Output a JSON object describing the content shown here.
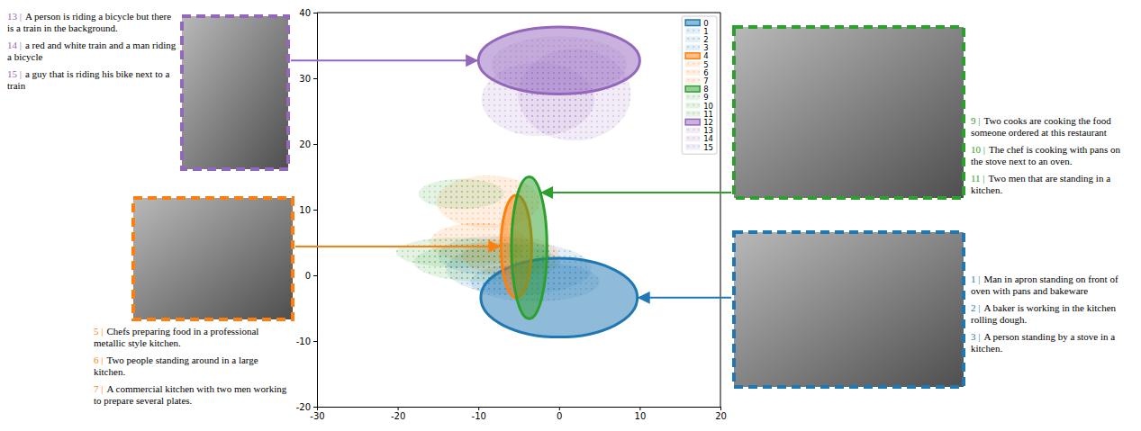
{
  "chart_data": {
    "type": "ellipse",
    "xlim": [
      -30,
      20
    ],
    "ylim": [
      -20,
      40
    ],
    "xticks": [
      -30,
      -20,
      -10,
      0,
      10,
      20
    ],
    "yticks": [
      -20,
      -10,
      0,
      10,
      20,
      30,
      40
    ],
    "legend": "upper right",
    "series": [
      {
        "name": "0",
        "color": "#1f77b4",
        "line_style": "solid",
        "x": 0,
        "y": -3.4,
        "rx": 9.7,
        "ry": 6
      },
      {
        "name": "1",
        "color": "#1f77b4",
        "line_style": "none",
        "x": -5,
        "y": 1,
        "rx": 9,
        "ry": 4
      },
      {
        "name": "2",
        "color": "#1f77b4",
        "line_style": "none",
        "x": -8,
        "y": 3,
        "rx": 7,
        "ry": 3
      },
      {
        "name": "3",
        "color": "#1f77b4",
        "line_style": "none",
        "x": -3,
        "y": -1,
        "rx": 8,
        "ry": 3
      },
      {
        "name": "4",
        "color": "#ff7f0e",
        "line_style": "solid",
        "x": -5.3,
        "y": 4.4,
        "rx": 1.9,
        "ry": 7.8
      },
      {
        "name": "5",
        "color": "#ff7f0e",
        "line_style": "none",
        "x": -8.8,
        "y": 11.2,
        "rx": 6.4,
        "ry": 4
      },
      {
        "name": "6",
        "color": "#ff7f0e",
        "line_style": "none",
        "x": -10,
        "y": 5,
        "rx": 6,
        "ry": 3
      },
      {
        "name": "7",
        "color": "#ff7f0e",
        "line_style": "none",
        "x": -6,
        "y": 3,
        "rx": 6,
        "ry": 3
      },
      {
        "name": "8",
        "color": "#2ca02c",
        "line_style": "solid",
        "x": -3.7,
        "y": 4.2,
        "rx": 2.2,
        "ry": 10.8
      },
      {
        "name": "9",
        "color": "#2ca02c",
        "line_style": "none",
        "x": -12.1,
        "y": 12.4,
        "rx": 5.3,
        "ry": 2.3
      },
      {
        "name": "10",
        "color": "#2ca02c",
        "line_style": "none",
        "x": -12.4,
        "y": 3.5,
        "rx": 7.8,
        "ry": 2.3
      },
      {
        "name": "11",
        "color": "#2ca02c",
        "line_style": "none",
        "x": -9,
        "y": 2,
        "rx": 9,
        "ry": 3
      },
      {
        "name": "12",
        "color": "#9467bd",
        "line_style": "solid",
        "x": 0,
        "y": 32.7,
        "rx": 10,
        "ry": 5.1
      },
      {
        "name": "13",
        "color": "#9467bd",
        "line_style": "none",
        "x": -2.6,
        "y": 26.8,
        "rx": 7,
        "ry": 5.6
      },
      {
        "name": "14",
        "color": "#9467bd",
        "line_style": "none",
        "x": 1.9,
        "y": 27.5,
        "rx": 7,
        "ry": 7
      },
      {
        "name": "15",
        "color": "#9467bd",
        "line_style": "none",
        "x": 0,
        "y": 32.1,
        "rx": 8.4,
        "ry": 4.3
      }
    ],
    "annotations": [
      {
        "series": 12,
        "captions": [
          {
            "label": "13 |",
            "text": "A person is riding a bicycle but there is a train in the background."
          },
          {
            "label": "14 |",
            "text": "a red and white train and a man riding a bicycle"
          },
          {
            "label": "15 |",
            "text": "a guy that is riding his bike next to a train"
          }
        ]
      },
      {
        "series": 8,
        "captions": [
          {
            "label": "9 |",
            "text": "Two cooks are cooking the food someone ordered at this restaurant"
          },
          {
            "label": "10 |",
            "text": "The chef is cooking with pans on the stove next to an oven."
          },
          {
            "label": "11 |",
            "text": "Two men that are standing in a kitchen."
          }
        ]
      },
      {
        "series": 4,
        "captions": [
          {
            "label": "5 |",
            "text": "Chefs preparing food in a professional metallic style kitchen."
          },
          {
            "label": "6 |",
            "text": "Two people standing around in a large kitchen."
          },
          {
            "label": "7 |",
            "text": "A commercial kitchen with two men working to prepare several plates."
          }
        ]
      },
      {
        "series": 0,
        "captions": [
          {
            "label": "1 |",
            "text": "Man in apron standing on front of oven with pans and bakeware"
          },
          {
            "label": "2 |",
            "text": "A baker is working in the kitchen rolling dough."
          },
          {
            "label": "3 |",
            "text": "A person standing by a stove in a kitchen."
          }
        ]
      }
    ]
  }
}
